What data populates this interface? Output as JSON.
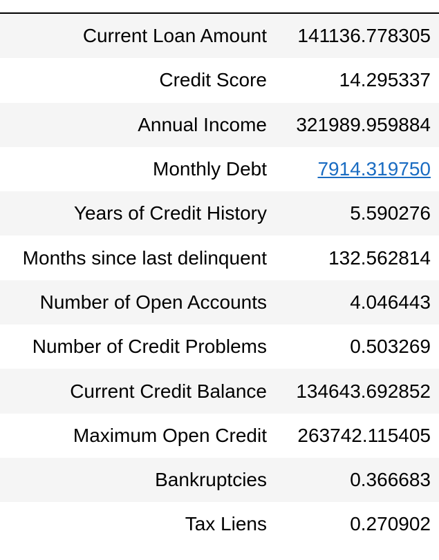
{
  "table": {
    "rows": [
      {
        "label": "Current Loan Amount",
        "value": "141136.778305",
        "link": false
      },
      {
        "label": "Credit Score",
        "value": "14.295337",
        "link": false
      },
      {
        "label": "Annual Income",
        "value": "321989.959884",
        "link": false
      },
      {
        "label": "Monthly Debt",
        "value": "7914.319750",
        "link": true
      },
      {
        "label": "Years of Credit History",
        "value": "5.590276",
        "link": false
      },
      {
        "label": "Months since last delinquent",
        "value": "132.562814",
        "link": false
      },
      {
        "label": "Number of Open Accounts",
        "value": "4.046443",
        "link": false
      },
      {
        "label": "Number of Credit Problems",
        "value": "0.503269",
        "link": false
      },
      {
        "label": "Current Credit Balance",
        "value": "134643.692852",
        "link": false
      },
      {
        "label": "Maximum Open Credit",
        "value": "263742.115405",
        "link": false
      },
      {
        "label": "Bankruptcies",
        "value": "0.366683",
        "link": false
      },
      {
        "label": "Tax Liens",
        "value": "0.270902",
        "link": false
      }
    ]
  }
}
